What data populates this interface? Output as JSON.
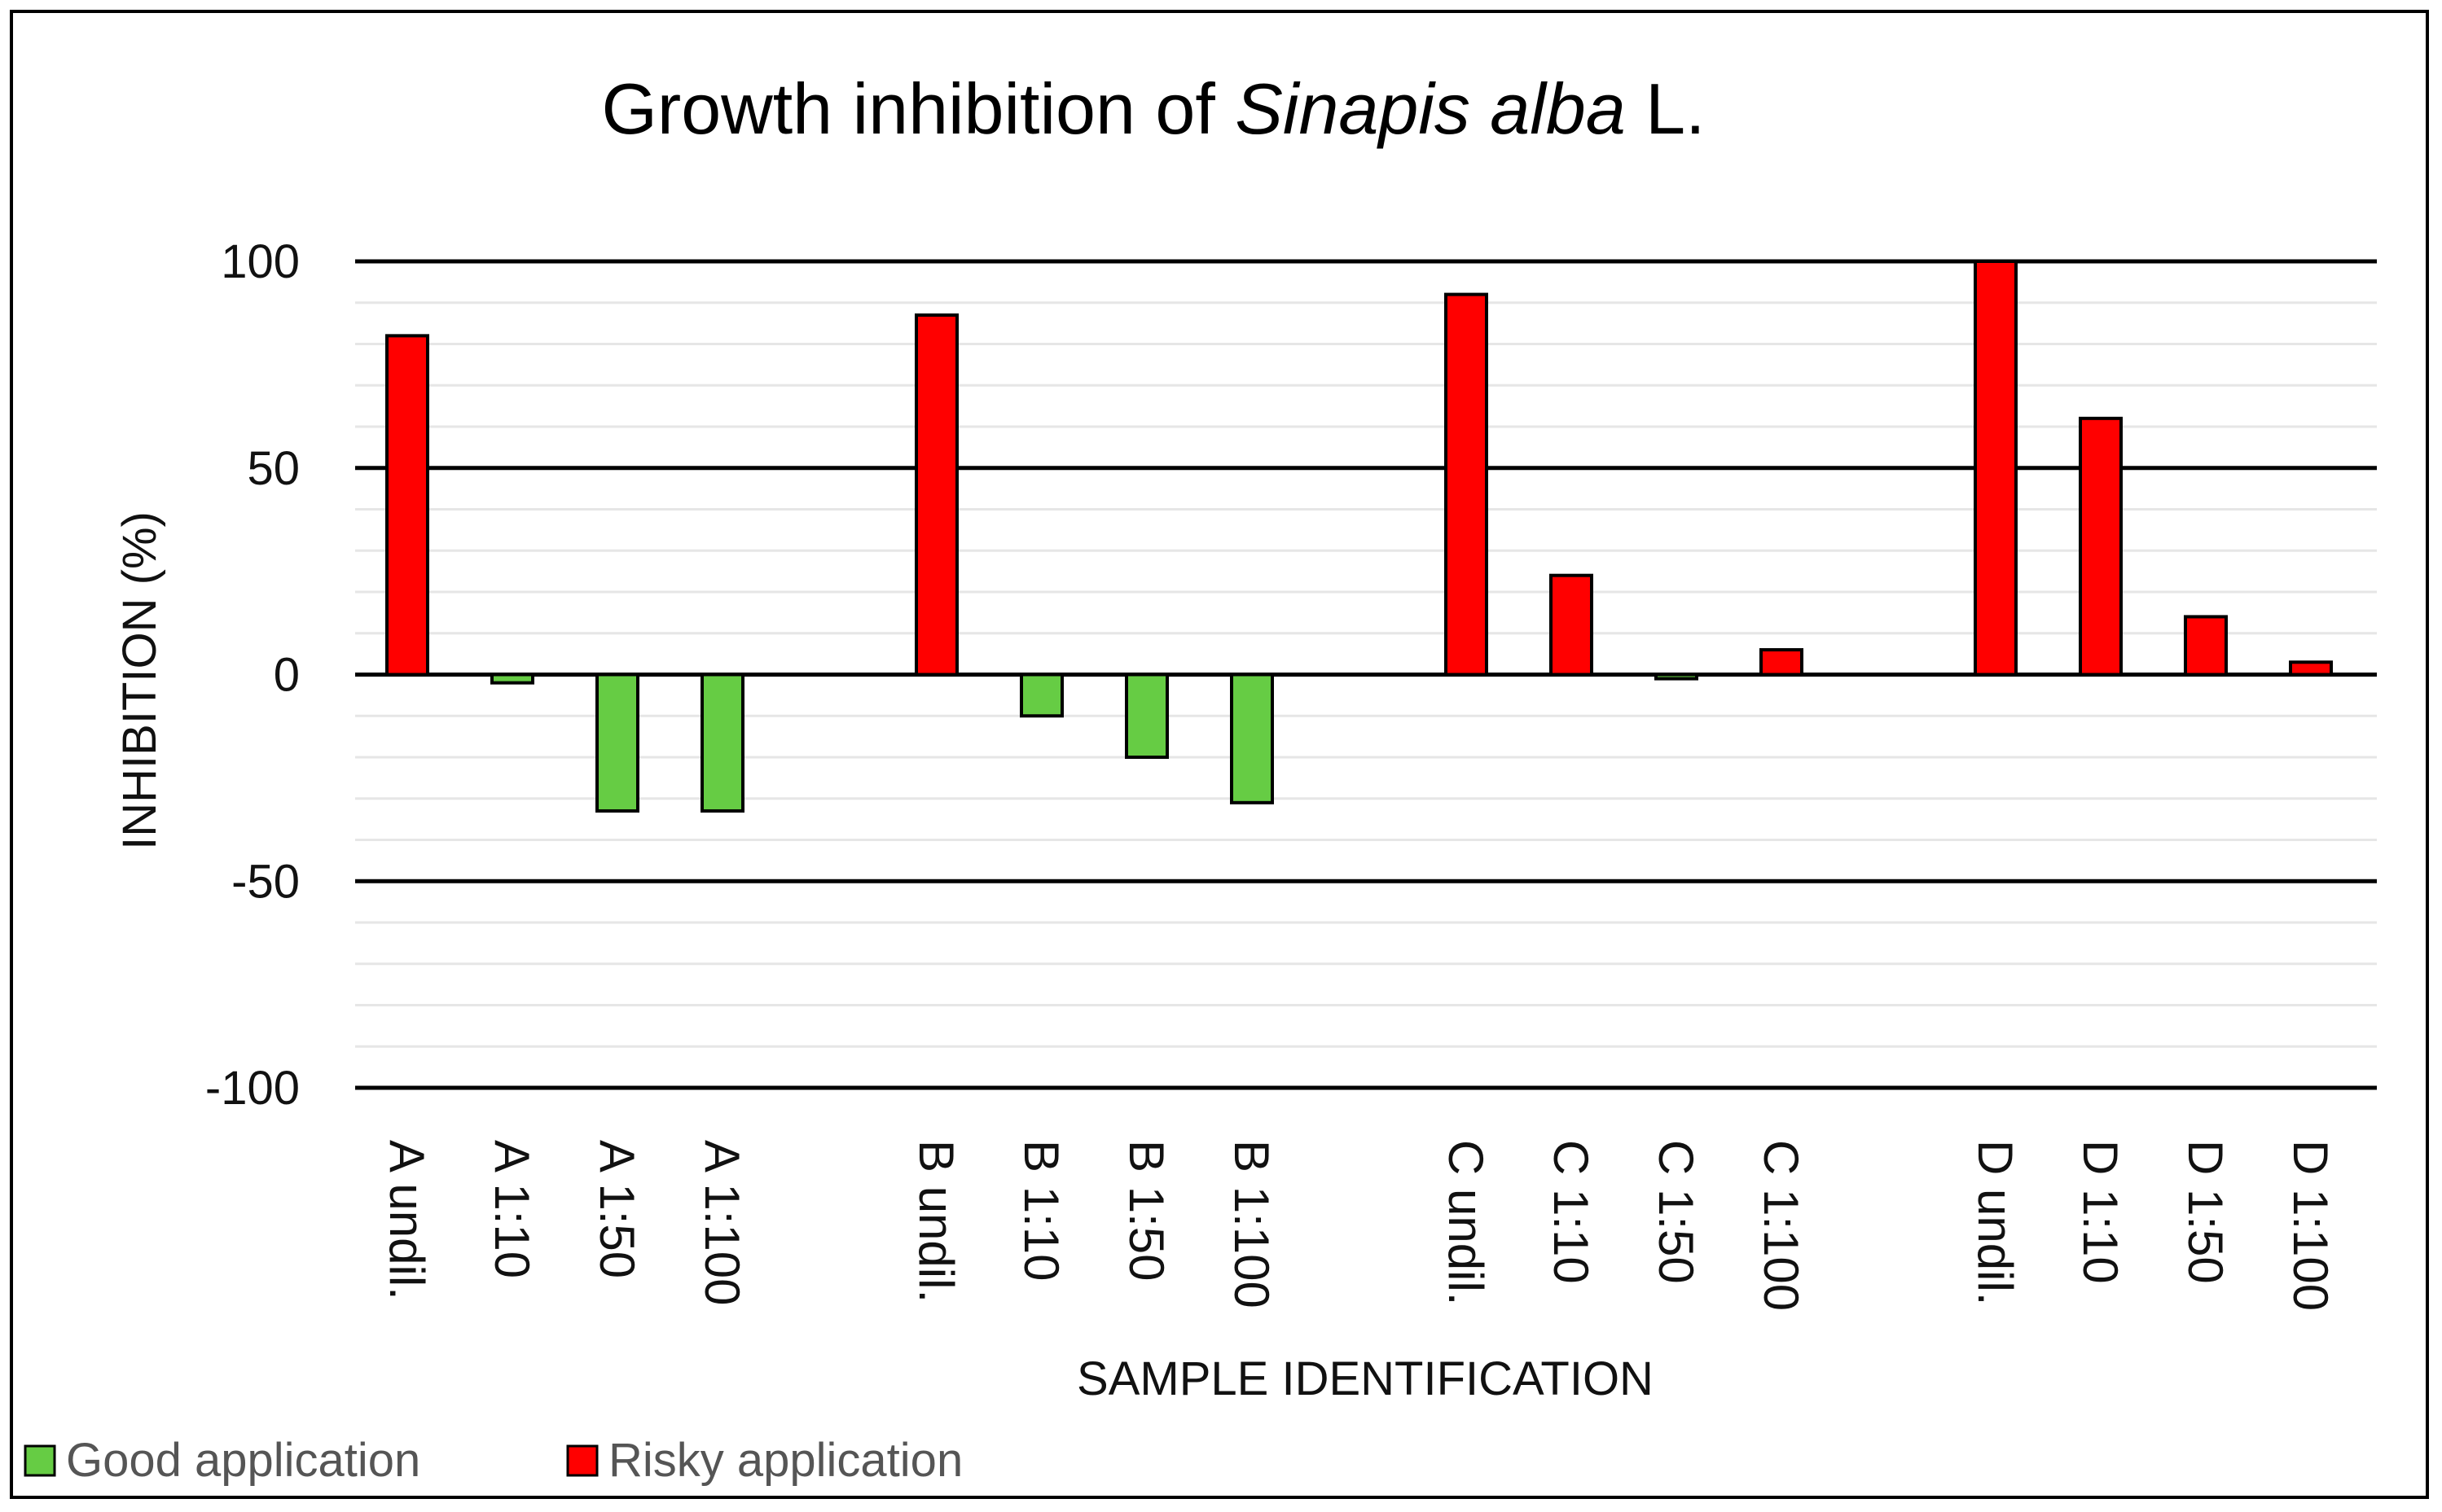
{
  "chart_data": {
    "type": "bar",
    "title": "Growth inhibition of Sinapis alba L.",
    "title_parts": {
      "normal_1": "Growth inhibition of ",
      "italic": "Sinapis alba",
      "normal_2": " L."
    },
    "xlabel": "SAMPLE IDENTIFICATION",
    "ylabel": "INHIBITION (%)",
    "ylim": [
      -100,
      100
    ],
    "yticks": [
      100,
      50,
      0,
      -50,
      -100
    ],
    "ytick_labels": [
      "100",
      "50",
      "0",
      "-50",
      "-100"
    ],
    "minor_step": 10,
    "categories": [
      "A undil.",
      "A 1:10",
      "A 1:50",
      "A 1:100",
      "B undil.",
      "B 1:10",
      "B 1:50",
      "B 1:100",
      "C undil.",
      "C 1:10",
      "C 1:50",
      "C 1:100",
      "D undil.",
      "D 1:10",
      "D 1:50",
      "D 1:100"
    ],
    "groups": 4,
    "values": [
      82,
      -2,
      -33,
      -33,
      87,
      -10,
      -20,
      -31,
      92,
      24,
      -1,
      6,
      100,
      62,
      14,
      3
    ],
    "classes": [
      "risky",
      "good",
      "good",
      "good",
      "risky",
      "good",
      "good",
      "good",
      "risky",
      "risky",
      "good",
      "risky",
      "risky",
      "risky",
      "risky",
      "risky"
    ],
    "legend": [
      {
        "key": "good",
        "name": "Good application",
        "color": "#66cc44"
      },
      {
        "key": "risky",
        "name": "Risky application",
        "color": "#ff0000"
      }
    ],
    "legend_position": "bottom-left"
  }
}
